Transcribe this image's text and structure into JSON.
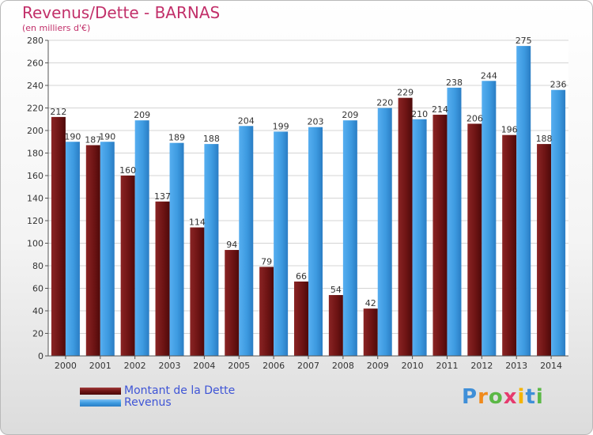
{
  "header": {
    "title": "Revenus/Dette - BARNAS",
    "subtitle": "(en milliers d'€)"
  },
  "chart_data": {
    "type": "bar",
    "categories": [
      "2000",
      "2001",
      "2002",
      "2003",
      "2004",
      "2005",
      "2006",
      "2007",
      "2008",
      "2009",
      "2010",
      "2011",
      "2012",
      "2013",
      "2014"
    ],
    "series": [
      {
        "name": "Montant de la Dette",
        "color": "#7a1a1a",
        "values": [
          212,
          187,
          160,
          137,
          114,
          94,
          79,
          66,
          54,
          42,
          229,
          214,
          206,
          196,
          188
        ]
      },
      {
        "name": "Revenus",
        "color": "#3d9ae0",
        "values": [
          190,
          190,
          209,
          189,
          188,
          204,
          199,
          203,
          209,
          220,
          210,
          238,
          244,
          275,
          236
        ]
      }
    ],
    "ylim": [
      0,
      280
    ],
    "yticks": [
      0,
      20,
      40,
      60,
      80,
      100,
      120,
      140,
      160,
      180,
      200,
      220,
      240,
      260,
      280
    ],
    "grid": true,
    "legend_position": "bottom-left"
  },
  "legend": {
    "items": [
      {
        "label": "Montant de la Dette",
        "color": "#7a1a1a"
      },
      {
        "label": "Revenus",
        "color": "#3d9ae0"
      }
    ]
  },
  "logo": {
    "letters": [
      "P",
      "r",
      "o",
      "x",
      "i",
      "t",
      "i"
    ],
    "colors": [
      "#3f8fd8",
      "#f08a1c",
      "#5bb846",
      "#e63a6e",
      "#f4b400",
      "#3f8fd8",
      "#5bb846"
    ]
  }
}
